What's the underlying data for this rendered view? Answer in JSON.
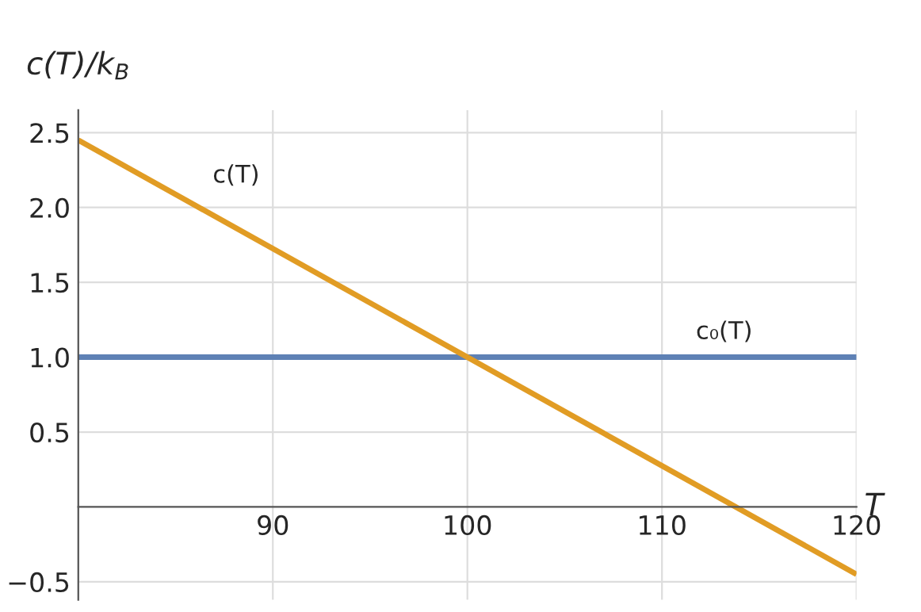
{
  "chart_data": {
    "type": "line",
    "xlabel": "T",
    "ylabel": "c(T)/k$_{B}$",
    "x": [
      80,
      120
    ],
    "series": [
      {
        "name": "c₀(T)",
        "color": "#5e81b5",
        "values": [
          1.0,
          1.0
        ]
      },
      {
        "name": "c(T)",
        "color": "#e19c24",
        "values": [
          2.45,
          -0.45
        ]
      }
    ],
    "xlim": [
      80,
      120
    ],
    "ylim": [
      -0.62,
      2.65
    ],
    "xticks": [
      {
        "value": 80,
        "label": null
      },
      90,
      100,
      110,
      120
    ],
    "yticks": [
      {
        "value": -0.5,
        "label": "−0.5"
      },
      {
        "value": 0.5,
        "label": "0.5"
      },
      {
        "value": 1.0,
        "label": "1.0"
      },
      {
        "value": 1.5,
        "label": "1.5"
      },
      {
        "value": 2.0,
        "label": "2.0"
      },
      {
        "value": 2.5,
        "label": "2.5"
      }
    ],
    "grid": true,
    "legend": false
  }
}
